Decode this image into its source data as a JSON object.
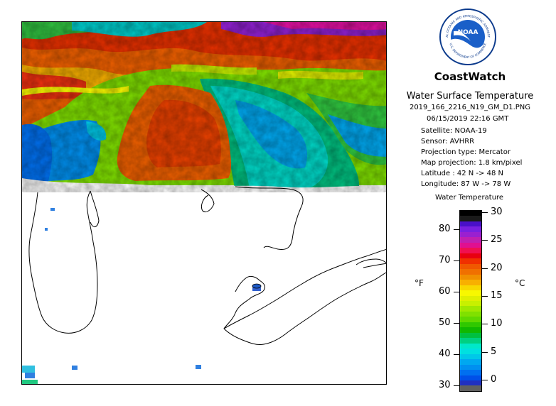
{
  "logo": {
    "center_text": "NOAA",
    "ring_text_top": "NATIONAL OCEANIC AND ATMOSPHERIC ADMINISTRATION",
    "ring_text_bottom": "U.S. DEPARTMENT OF COMMERCE"
  },
  "header": {
    "title": "CoastWatch",
    "subtitle": "Water Surface Temperature",
    "filename": "2019_166_2216_N19_GM_D1.PNG"
  },
  "metadata": {
    "datetime": "06/15/2019   22:16 GMT",
    "satellite": "Satellite: NOAA-19",
    "sensor": "Sensor: AVHRR",
    "projection_type": "Projection type:  Mercator",
    "map_projection": "Map projection: 1.8 km/pixel",
    "latitude": "Latitude : 42 N -> 48 N",
    "longitude": "Longitude: 87 W -> 78 W"
  },
  "legend": {
    "title": "Water Temperature",
    "unit_f": "°F",
    "unit_c": "°C",
    "fahrenheit_ticks": [
      "80",
      "70",
      "60",
      "50",
      "40",
      "30"
    ],
    "celsius_ticks": [
      "30",
      "25",
      "20",
      "15",
      "10",
      "5",
      "0"
    ],
    "colors": [
      "#000000",
      "#1a1a1a",
      "#4a10c8",
      "#7a20e0",
      "#9a20d0",
      "#c020b0",
      "#e01090",
      "#f01050",
      "#e80010",
      "#f03000",
      "#f05800",
      "#f07000",
      "#f09000",
      "#f8b000",
      "#f8d800",
      "#f8f800",
      "#e0f000",
      "#c8f000",
      "#a0e800",
      "#80e000",
      "#60d800",
      "#30c800",
      "#10b800",
      "#00c040",
      "#00d080",
      "#00e8c8",
      "#00e0e0",
      "#00c8e8",
      "#00a8f0",
      "#0090f0",
      "#0070f0",
      "#0050e8",
      "#2030c0",
      "#606060"
    ],
    "range_f": [
      30,
      86
    ],
    "range_c": [
      -1,
      30
    ]
  },
  "map": {
    "latitude_range": [
      42,
      48
    ],
    "longitude_range": [
      -87,
      -78
    ],
    "land_color": "#ffffff",
    "coast_color": "#000000"
  }
}
